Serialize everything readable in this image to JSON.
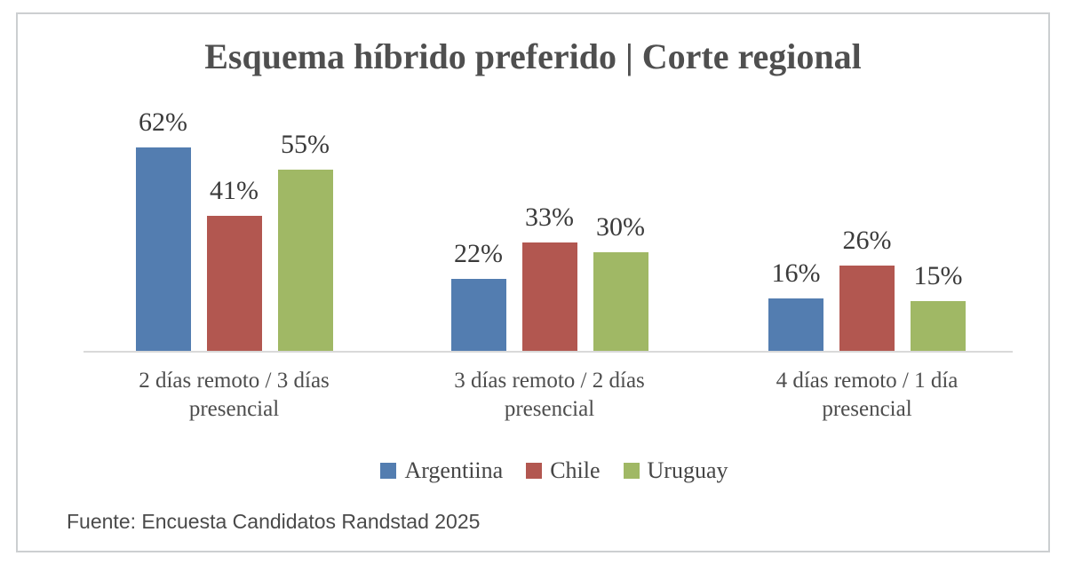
{
  "chart": {
    "title": "Esquema híbrido preferido | Corte regional",
    "source": "Fuente: Encuesta Candidatos Randstad 2025"
  },
  "chart_data": {
    "type": "bar",
    "title": "Esquema híbrido preferido | Corte regional",
    "categories": [
      "2 días remoto / 3 días presencial",
      "3 días remoto / 2 días presencial",
      "4 días remoto / 1 día presencial"
    ],
    "category_lines": [
      [
        "2 días remoto / 3 días",
        "presencial"
      ],
      [
        "3 días remoto / 2 días",
        "presencial"
      ],
      [
        "4 días remoto / 1 día",
        "presencial"
      ]
    ],
    "series": [
      {
        "name": "Argentiina",
        "color": "#537db0",
        "values": [
          62,
          22,
          16
        ]
      },
      {
        "name": "Chile",
        "color": "#b25750",
        "values": [
          41,
          33,
          26
        ]
      },
      {
        "name": "Uruguay",
        "color": "#a0b865",
        "values": [
          55,
          30,
          15
        ]
      }
    ],
    "value_suffix": "%",
    "value_labels": [
      [
        "62%",
        "22%",
        "16%"
      ],
      [
        "41%",
        "33%",
        "26%"
      ],
      [
        "55%",
        "30%",
        "15%"
      ]
    ],
    "ylim": [
      0,
      70
    ],
    "grid": false,
    "legend_position": "bottom",
    "xlabel": "",
    "ylabel": "",
    "source": "Fuente: Encuesta Candidatos Randstad 2025",
    "axis_color": "#d9d9d9"
  }
}
